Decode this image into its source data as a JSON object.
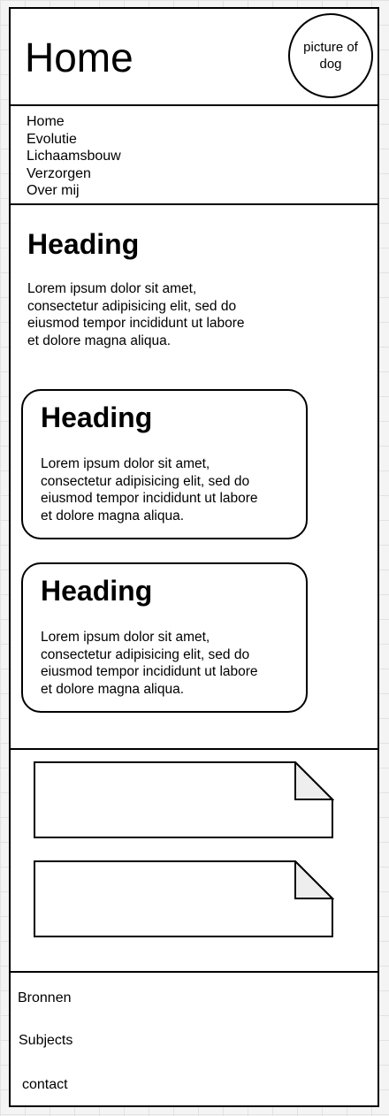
{
  "header": {
    "title": "Home",
    "avatar_text": "picture of dog"
  },
  "nav": {
    "items": [
      {
        "label": "Home"
      },
      {
        "label": "Evolutie"
      },
      {
        "label": "Lichaamsbouw"
      },
      {
        "label": "Verzorgen"
      },
      {
        "label": "Over mij"
      }
    ]
  },
  "main": {
    "heading": "Heading",
    "text": "Lorem ipsum dolor sit amet, consectetur adipisicing elit, sed do eiusmod tempor incididunt ut labore et dolore magna aliqua."
  },
  "cards": [
    {
      "heading": "Heading",
      "text": "Lorem ipsum dolor sit amet, consectetur adipisicing elit, sed do eiusmod tempor incididunt ut labore et dolore magna aliqua."
    },
    {
      "heading": "Heading",
      "text": "Lorem ipsum dolor sit amet, consectetur adipisicing elit, sed do eiusmod tempor incididunt ut labore et dolore magna aliqua."
    }
  ],
  "footer": {
    "links": [
      {
        "label": "Bronnen"
      },
      {
        "label": "Subjects"
      },
      {
        "label": "contact"
      }
    ]
  },
  "colors": {
    "stroke": "#000000",
    "fold_fill": "#eeeeee",
    "canvas_grid": "#e2e2e2"
  }
}
